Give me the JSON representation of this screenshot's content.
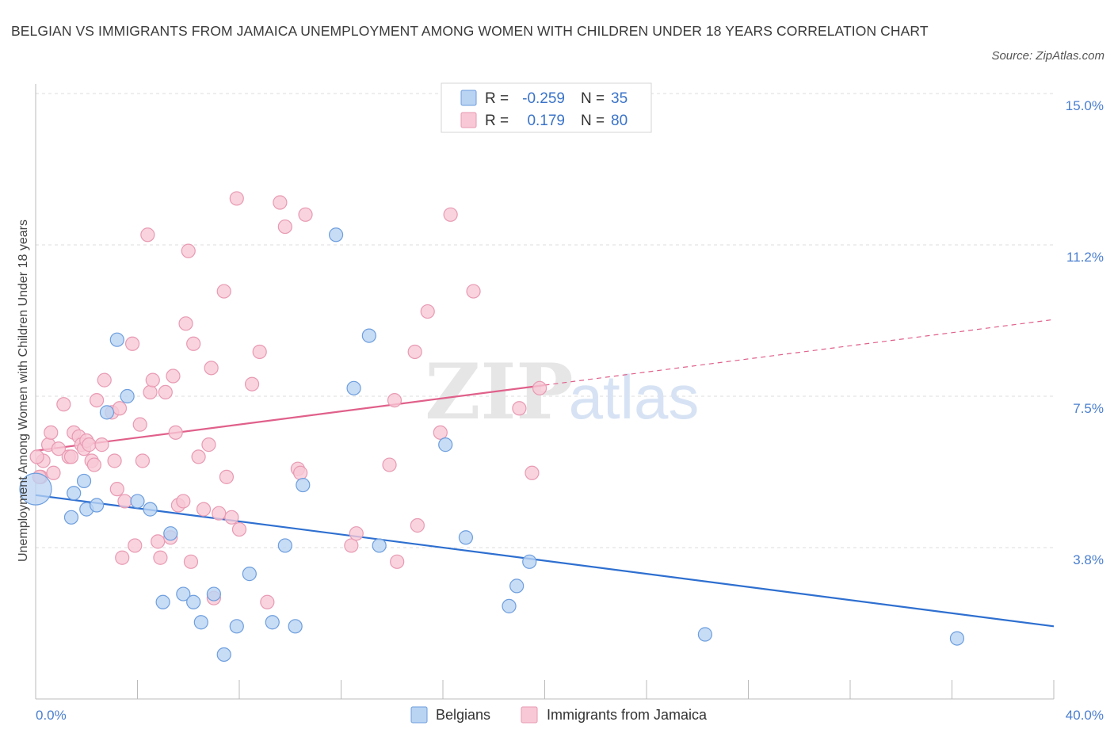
{
  "title": "BELGIAN VS IMMIGRANTS FROM JAMAICA UNEMPLOYMENT AMONG WOMEN WITH CHILDREN UNDER 18 YEARS CORRELATION CHART",
  "source": "Source: ZipAtlas.com",
  "watermark": {
    "zip": "ZIP",
    "atlas": "atlas"
  },
  "legend": {
    "rows": [
      {
        "r_label": "R =",
        "r_value": "-0.259",
        "n_label": "N =",
        "n_value": "35",
        "color": "#a9c8f0"
      },
      {
        "r_label": "R =",
        "r_value": "0.179",
        "n_label": "N =",
        "n_value": "80",
        "color": "#f5b8cb"
      }
    ]
  },
  "colors": {
    "belgians_fill": "#b9d3f3",
    "belgians_stroke": "#6d9ede",
    "belgians_line": "#2e6fd0",
    "jamaica_fill": "#f8c8d6",
    "jamaica_stroke": "#e89ab3",
    "jamaica_line": "#e0608a"
  },
  "chart_data": {
    "type": "scatter",
    "xlabel": "",
    "ylabel": "Unemployment Among Women with Children Under 18 years",
    "xlim": [
      0,
      40
    ],
    "ylim": [
      0,
      15
    ],
    "x_tick_labels": [
      {
        "value": 0,
        "label": "0.0%"
      },
      {
        "value": 40,
        "label": "40.0%"
      }
    ],
    "y_tick_labels": [
      {
        "value": 3.75,
        "label": "3.8%"
      },
      {
        "value": 7.5,
        "label": "7.5%"
      },
      {
        "value": 11.25,
        "label": "11.2%"
      },
      {
        "value": 15.0,
        "label": "15.0%"
      }
    ],
    "legend_placement": "top-center",
    "grid": true,
    "series": [
      {
        "name": "Belgians",
        "points": [
          [
            0.0,
            5.2
          ],
          [
            1.5,
            5.1
          ],
          [
            1.4,
            4.5
          ],
          [
            1.9,
            5.4
          ],
          [
            2.0,
            4.7
          ],
          [
            2.4,
            4.8
          ],
          [
            3.2,
            8.9
          ],
          [
            2.8,
            7.1
          ],
          [
            3.6,
            7.5
          ],
          [
            4.0,
            4.9
          ],
          [
            4.5,
            4.7
          ],
          [
            5.3,
            4.1
          ],
          [
            5.0,
            2.4
          ],
          [
            5.8,
            2.6
          ],
          [
            6.2,
            2.4
          ],
          [
            6.5,
            1.9
          ],
          [
            7.0,
            2.6
          ],
          [
            7.4,
            1.1
          ],
          [
            7.9,
            1.8
          ],
          [
            8.4,
            3.1
          ],
          [
            9.3,
            1.9
          ],
          [
            9.8,
            3.8
          ],
          [
            10.2,
            1.8
          ],
          [
            10.5,
            5.3
          ],
          [
            11.8,
            11.5
          ],
          [
            12.5,
            7.7
          ],
          [
            13.1,
            9.0
          ],
          [
            13.5,
            3.8
          ],
          [
            16.1,
            6.3
          ],
          [
            16.9,
            4.0
          ],
          [
            18.6,
            2.3
          ],
          [
            18.9,
            2.8
          ],
          [
            19.4,
            3.4
          ],
          [
            26.3,
            1.6
          ],
          [
            36.2,
            1.5
          ]
        ]
      },
      {
        "name": "Immigrants from Jamaica",
        "points": [
          [
            0.2,
            5.5
          ],
          [
            0.3,
            5.9
          ],
          [
            0.5,
            6.3
          ],
          [
            0.6,
            6.6
          ],
          [
            0.7,
            5.6
          ],
          [
            0.9,
            6.2
          ],
          [
            1.1,
            7.3
          ],
          [
            1.3,
            6.0
          ],
          [
            1.4,
            6.0
          ],
          [
            1.5,
            6.6
          ],
          [
            1.7,
            6.5
          ],
          [
            1.8,
            6.3
          ],
          [
            1.9,
            6.2
          ],
          [
            2.0,
            6.4
          ],
          [
            2.1,
            6.3
          ],
          [
            2.2,
            5.9
          ],
          [
            2.3,
            5.8
          ],
          [
            2.4,
            7.4
          ],
          [
            2.6,
            6.3
          ],
          [
            2.7,
            7.9
          ],
          [
            3.0,
            7.1
          ],
          [
            3.1,
            5.9
          ],
          [
            3.2,
            5.2
          ],
          [
            3.3,
            7.2
          ],
          [
            3.4,
            3.5
          ],
          [
            3.5,
            4.9
          ],
          [
            3.8,
            8.8
          ],
          [
            3.9,
            3.8
          ],
          [
            4.1,
            6.8
          ],
          [
            4.2,
            5.9
          ],
          [
            4.4,
            11.5
          ],
          [
            4.5,
            7.6
          ],
          [
            4.6,
            7.9
          ],
          [
            4.8,
            3.9
          ],
          [
            4.9,
            3.5
          ],
          [
            5.1,
            7.6
          ],
          [
            5.3,
            4.0
          ],
          [
            5.4,
            8.0
          ],
          [
            5.5,
            6.6
          ],
          [
            5.6,
            4.8
          ],
          [
            5.8,
            4.9
          ],
          [
            5.9,
            9.3
          ],
          [
            6.0,
            11.1
          ],
          [
            6.1,
            3.4
          ],
          [
            6.2,
            8.8
          ],
          [
            6.4,
            6.0
          ],
          [
            6.6,
            4.7
          ],
          [
            6.8,
            6.3
          ],
          [
            6.9,
            8.2
          ],
          [
            7.0,
            2.5
          ],
          [
            7.2,
            4.6
          ],
          [
            7.4,
            10.1
          ],
          [
            7.5,
            5.5
          ],
          [
            7.7,
            4.5
          ],
          [
            7.9,
            12.4
          ],
          [
            8.0,
            4.2
          ],
          [
            8.5,
            7.8
          ],
          [
            8.8,
            8.6
          ],
          [
            9.1,
            2.4
          ],
          [
            9.6,
            12.3
          ],
          [
            9.8,
            11.7
          ],
          [
            10.3,
            5.7
          ],
          [
            10.4,
            5.6
          ],
          [
            10.6,
            12.0
          ],
          [
            12.4,
            3.8
          ],
          [
            12.6,
            4.1
          ],
          [
            13.9,
            5.8
          ],
          [
            14.1,
            7.4
          ],
          [
            14.2,
            3.4
          ],
          [
            15.0,
            4.3
          ],
          [
            14.9,
            8.6
          ],
          [
            15.4,
            9.6
          ],
          [
            15.9,
            6.6
          ],
          [
            16.3,
            12.0
          ],
          [
            17.2,
            10.1
          ],
          [
            19.0,
            7.2
          ],
          [
            19.5,
            5.6
          ],
          [
            19.8,
            7.7
          ],
          [
            0.15,
            5.5
          ],
          [
            0.05,
            6.0
          ]
        ]
      }
    ],
    "trendlines": [
      {
        "name": "Belgians",
        "x": [
          0,
          40
        ],
        "y": [
          5.05,
          1.8
        ],
        "dashed_from": null
      },
      {
        "name": "Immigrants from Jamaica",
        "x": [
          0,
          40
        ],
        "y": [
          6.15,
          9.4
        ],
        "dashed_from": 20
      }
    ]
  }
}
